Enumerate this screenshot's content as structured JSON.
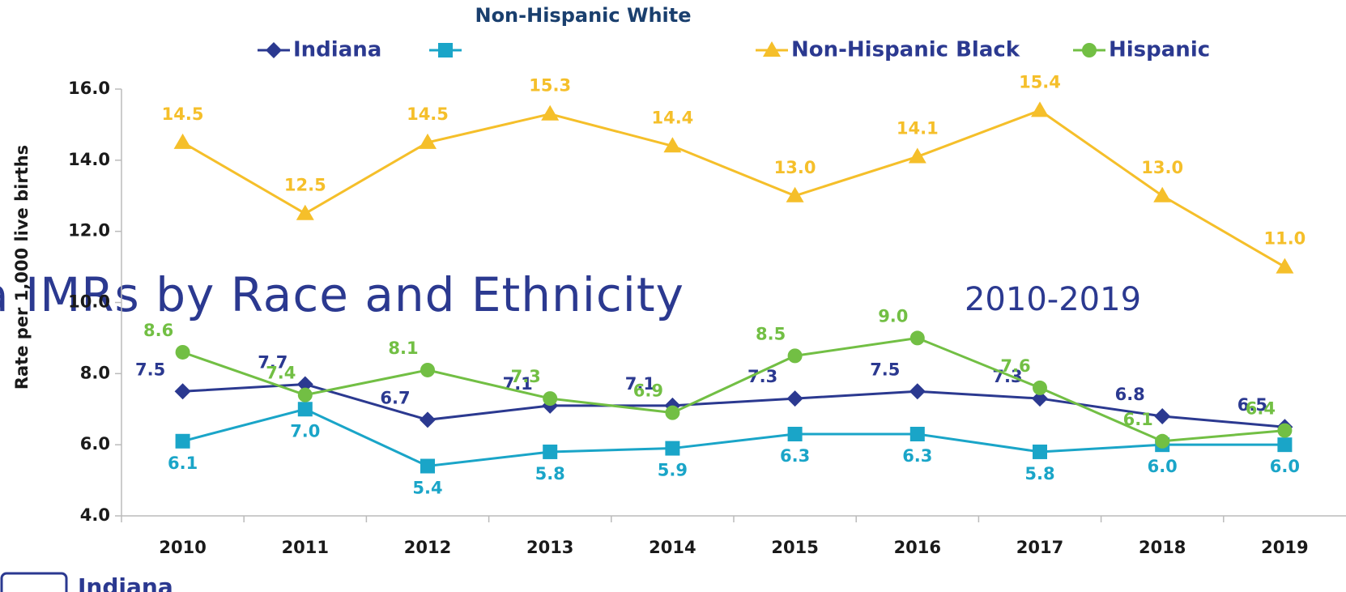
{
  "chart_data": {
    "type": "line",
    "title": "Indiana IMRs by Race and Ethnicity",
    "subtitle": "2010-2019",
    "y_label": "Rate per 1,000 live births",
    "logo_text": "Indiana",
    "categories": [
      "2010",
      "2011",
      "2012",
      "2013",
      "2014",
      "2015",
      "2016",
      "2017",
      "2018",
      "2019"
    ],
    "series": [
      {
        "name": "Indiana",
        "color": "#2b3990",
        "marker": "diamond",
        "values": [
          7.5,
          7.7,
          6.7,
          7.1,
          7.1,
          7.3,
          7.5,
          7.3,
          6.8,
          6.5
        ],
        "value_labels": [
          "7.5",
          "7.7",
          "6.7",
          "7.1",
          "7.1",
          "7.3",
          "7.5",
          "7.3",
          "6.8",
          "6.5"
        ]
      },
      {
        "name": "Non-Hispanic White",
        "color": "#1aa5c8",
        "marker": "square",
        "values": [
          6.1,
          7.0,
          5.4,
          5.8,
          5.9,
          6.3,
          6.3,
          5.8,
          6.0,
          6.0
        ],
        "value_labels": [
          "6.1",
          "7.0",
          "5.4",
          "5.8",
          "5.9",
          "6.3",
          "6.3",
          "5.8",
          "6.0",
          "6.0"
        ]
      },
      {
        "name": "Non-Hispanic Black",
        "color": "#f5bf2a",
        "marker": "triangle",
        "values": [
          14.5,
          12.5,
          14.5,
          15.3,
          14.4,
          13.0,
          14.1,
          15.4,
          13.0,
          11.0
        ],
        "value_labels": [
          "14.5",
          "12.5",
          "14.5",
          "15.3",
          "14.4",
          "13.0",
          "14.1",
          "15.4",
          "13.0",
          "11.0"
        ]
      },
      {
        "name": "Hispanic",
        "color": "#72bf44",
        "marker": "circle",
        "values": [
          8.6,
          7.4,
          8.1,
          7.3,
          6.9,
          8.5,
          9.0,
          7.6,
          6.1,
          6.4
        ],
        "value_labels": [
          "8.6",
          "7.4",
          "8.1",
          "7.3",
          "6.9",
          "8.5",
          "9.0",
          "7.6",
          "6.1",
          "6.4"
        ]
      }
    ],
    "ylim": [
      4,
      16
    ],
    "yticks": [
      {
        "value": 4,
        "label": "4.0"
      },
      {
        "value": 6,
        "label": "6.0"
      },
      {
        "value": 8,
        "label": "8.0"
      },
      {
        "value": 10,
        "label": "10.0"
      },
      {
        "value": 12,
        "label": "12.0"
      },
      {
        "value": 14,
        "label": "14.0"
      },
      {
        "value": 16,
        "label": "16.0"
      }
    ],
    "legend": "top"
  }
}
